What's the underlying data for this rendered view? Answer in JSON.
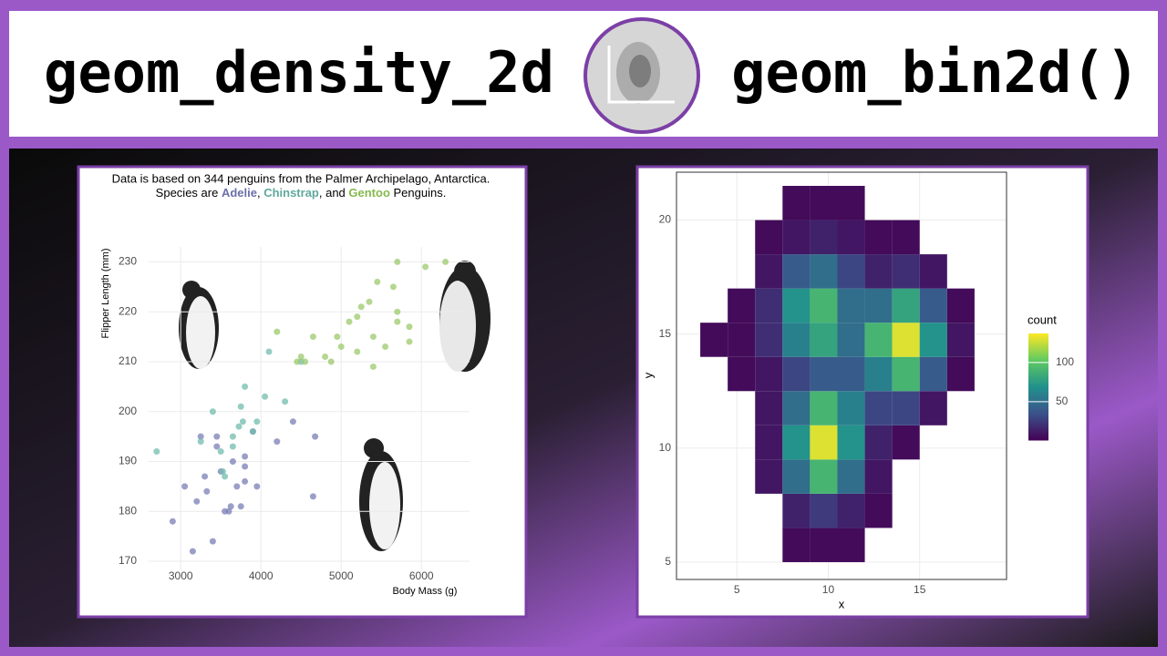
{
  "header": {
    "left_title": "geom_density_2d",
    "right_title": "geom_bin2d()"
  },
  "chart_data": [
    {
      "type": "scatter",
      "title": "Data is based on 344 penguins from the Palmer Archipelago, Antarctica.",
      "subtitle_parts": [
        {
          "text": "Species are "
        },
        {
          "text": "Adelie",
          "color": "#6b70a8"
        },
        {
          "text": ", "
        },
        {
          "text": "Chinstrap",
          "color": "#5fa99c"
        },
        {
          "text": ", and "
        },
        {
          "text": "Gentoo",
          "color": "#86b94f"
        },
        {
          "text": " Penguins."
        }
      ],
      "xlabel": "Body Mass (g)",
      "ylabel": "Flipper Length (mm)",
      "xlim": [
        2600,
        6600
      ],
      "ylim": [
        168,
        233
      ],
      "xticks": [
        3000,
        4000,
        5000,
        6000
      ],
      "yticks": [
        170,
        180,
        190,
        200,
        210,
        220,
        230
      ],
      "grid": true,
      "series": [
        {
          "color": "#7a7fb5",
          "x": [
            3750,
            3800,
            3250,
            3450,
            3650,
            3625,
            4675,
            3200,
            3800,
            4400,
            3700,
            3450,
            3325,
            4200,
            3400,
            3600,
            3800,
            3950,
            3550,
            3300,
            4650,
            3150,
            2900,
            3500,
            3900,
            3050
          ],
          "y": [
            181,
            186,
            195,
            193,
            190,
            181,
            195,
            182,
            191,
            198,
            185,
            195,
            184,
            194,
            174,
            180,
            189,
            185,
            180,
            187,
            183,
            172,
            178,
            188,
            196,
            185
          ]
        },
        {
          "color": "#72bcae",
          "x": [
            3500,
            3900,
            3650,
            3525,
            3725,
            3950,
            3250,
            3750,
            4050,
            2700,
            3800,
            4500,
            3550,
            4300,
            3650,
            3400,
            3775,
            4100
          ],
          "y": [
            192,
            196,
            193,
            188,
            197,
            198,
            194,
            201,
            203,
            192,
            205,
            210,
            187,
            202,
            195,
            200,
            198,
            212
          ]
        },
        {
          "color": "#9cc96c",
          "x": [
            4500,
            5700,
            4450,
            5700,
            5400,
            4550,
            4800,
            5200,
            5400,
            4650,
            5850,
            4200,
            5550,
            5850,
            6300,
            5350,
            5700,
            4950,
            5000,
            5250,
            5100,
            5650,
            6050,
            5450,
            4875,
            5200
          ],
          "y": [
            211,
            230,
            210,
            218,
            215,
            210,
            211,
            219,
            209,
            215,
            214,
            216,
            213,
            217,
            230,
            222,
            220,
            215,
            213,
            221,
            218,
            225,
            229,
            226,
            210,
            212
          ]
        }
      ]
    },
    {
      "type": "heatmap",
      "xlabel": "x",
      "ylabel": "y",
      "xlim": [
        1.7,
        19.75
      ],
      "ylim": [
        4.24,
        22.1
      ],
      "xticks": [
        5,
        10,
        15
      ],
      "yticks": [
        5,
        10,
        15,
        20
      ],
      "grid": true,
      "x_edges": [
        3,
        4.5,
        6,
        7.5,
        9,
        10.5,
        12,
        13.5,
        15,
        16.5,
        18
      ],
      "y_edges": [
        5,
        6.5,
        8,
        9.5,
        11,
        12.5,
        14,
        15.5,
        17,
        18.5,
        20,
        21.5
      ],
      "z": [
        [
          null,
          null,
          null,
          5,
          5,
          5,
          null,
          null,
          null,
          null
        ],
        [
          null,
          null,
          null,
          15,
          25,
          15,
          5,
          null,
          null,
          null
        ],
        [
          null,
          null,
          10,
          50,
          90,
          50,
          10,
          null,
          null,
          null
        ],
        [
          null,
          null,
          10,
          70,
          130,
          70,
          15,
          5,
          null,
          null
        ],
        [
          null,
          null,
          10,
          50,
          90,
          60,
          30,
          30,
          10,
          null
        ],
        [
          null,
          5,
          10,
          30,
          40,
          40,
          60,
          90,
          40,
          5
        ],
        [
          5,
          5,
          20,
          60,
          80,
          50,
          90,
          130,
          70,
          10
        ],
        [
          null,
          5,
          20,
          70,
          90,
          50,
          50,
          80,
          40,
          5
        ],
        [
          null,
          null,
          10,
          40,
          50,
          30,
          15,
          20,
          10,
          null
        ],
        [
          null,
          null,
          5,
          10,
          15,
          10,
          5,
          5,
          null,
          null
        ],
        [
          null,
          null,
          null,
          5,
          5,
          5,
          null,
          null,
          null,
          null
        ]
      ],
      "colorbar": {
        "title": "count",
        "lim": [
          1,
          137
        ],
        "ticks": [
          50,
          100
        ]
      },
      "colors": [
        "#440154",
        "#3b528b",
        "#21918c",
        "#5ec962",
        "#fde725"
      ]
    }
  ]
}
